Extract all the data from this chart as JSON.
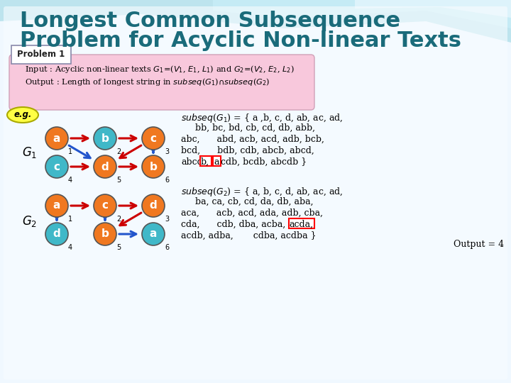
{
  "title_line1": "Longest Common Subsequence",
  "title_line2": "Problem for Acyclic Non-linear Texts",
  "title_color": "#1a6b7a",
  "bg_top_color": "#b0e8f0",
  "bg_bottom_color": "#f0f8ff",
  "header_bg": "#f0c0d8",
  "problem_box_title": "Problem 1",
  "orange_color": "#f07820",
  "teal_color": "#40b8c8",
  "red_arrow": "#cc0000",
  "blue_arrow": "#2255cc",
  "yellow_eg": "#ffff44"
}
